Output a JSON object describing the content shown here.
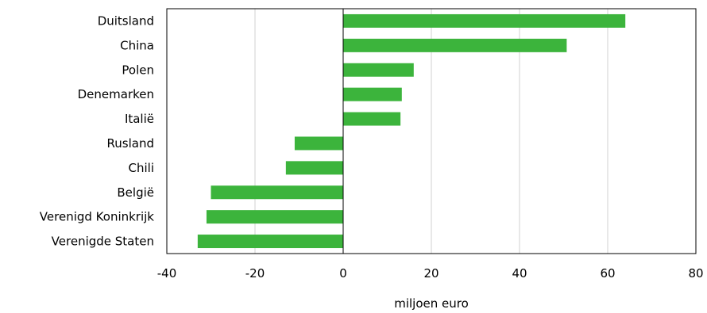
{
  "chart_data": {
    "type": "bar",
    "orientation": "horizontal",
    "categories": [
      "Duitsland",
      "China",
      "Polen",
      "Denemarken",
      "Italië",
      "Rusland",
      "Chili",
      "België",
      "Verenigd Koninkrijk",
      "Verenigde Staten"
    ],
    "values": [
      64,
      50.7,
      16,
      13.3,
      13,
      -11,
      -13,
      -30,
      -31,
      -33
    ],
    "xlabel": "miljoen euro",
    "ylabel": "",
    "xlim": [
      -40,
      80
    ],
    "xticks": [
      "-40",
      "-20",
      "0",
      "20",
      "40",
      "60",
      "80"
    ],
    "grid": "vertical",
    "legend": "none",
    "colors": {
      "bar": "#3cb43c",
      "grid": "#d0d0d0",
      "axis": "#000000"
    }
  }
}
